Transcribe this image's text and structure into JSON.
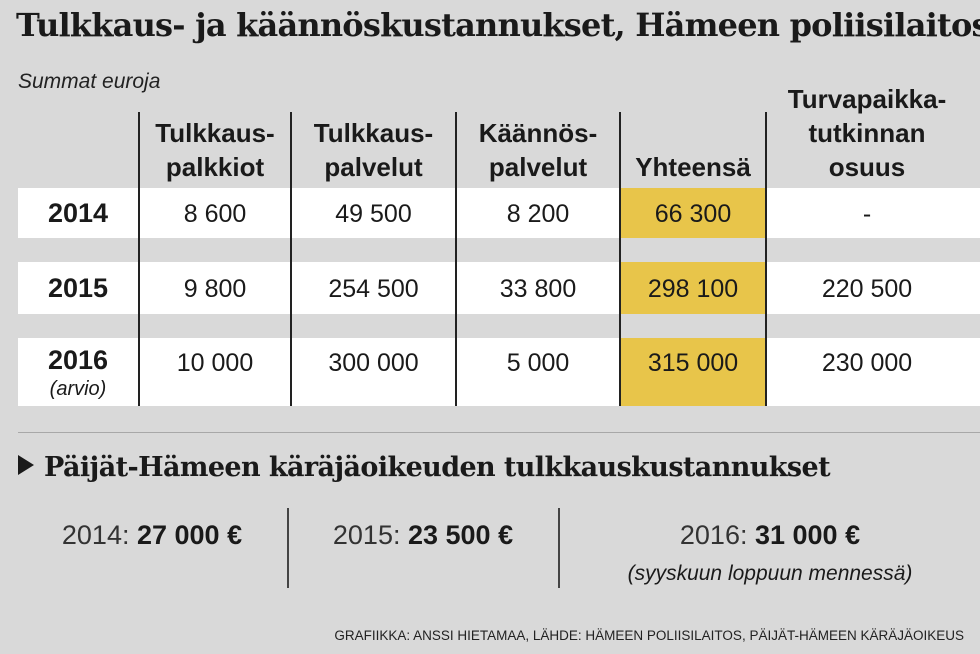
{
  "title": "Tulkkaus- ja käännöskustannukset, Hämeen poliisilaitos",
  "subtitle": "Summat euroja",
  "chart_data": {
    "type": "table",
    "columns": [
      {
        "lines": [
          "Tulkkaus-",
          "palkkiot"
        ]
      },
      {
        "lines": [
          "Tulkkaus-",
          "palvelut"
        ]
      },
      {
        "lines": [
          "Käännös-",
          "palvelut"
        ]
      },
      {
        "lines": [
          "Yhteensä"
        ]
      },
      {
        "lines": [
          "Turvapaikka-",
          "tutkinnan",
          "osuus"
        ]
      }
    ],
    "rows": [
      {
        "year": "2014",
        "note": "",
        "values": [
          "8 600",
          "49 500",
          "8 200",
          "66 300",
          "-"
        ]
      },
      {
        "year": "2015",
        "note": "",
        "values": [
          "9 800",
          "254 500",
          "33 800",
          "298 100",
          "220 500"
        ]
      },
      {
        "year": "2016",
        "note": "(arvio)",
        "values": [
          "10 000",
          "300 000",
          "5 000",
          "315 000",
          "230 000"
        ]
      }
    ],
    "highlight_column": "Yhteensä",
    "highlight_color": "#e8c54a"
  },
  "section": {
    "title": "Päijät-Hämeen käräjäoikeuden tulkkauskustannukset",
    "items": [
      {
        "label": "2014:",
        "value": "27 000 €"
      },
      {
        "label": "2015:",
        "value": "23 500 €"
      },
      {
        "label": "2016:",
        "value": "31 000 €"
      }
    ],
    "note": "(syyskuun loppuun mennessä)"
  },
  "credit": "GRAFIIKKA: ANSSI HIETAMAA, LÄHDE: HÄMEEN POLIISILAITOS, PÄIJÄT-HÄMEEN KÄRÄJÄOIKEUS"
}
